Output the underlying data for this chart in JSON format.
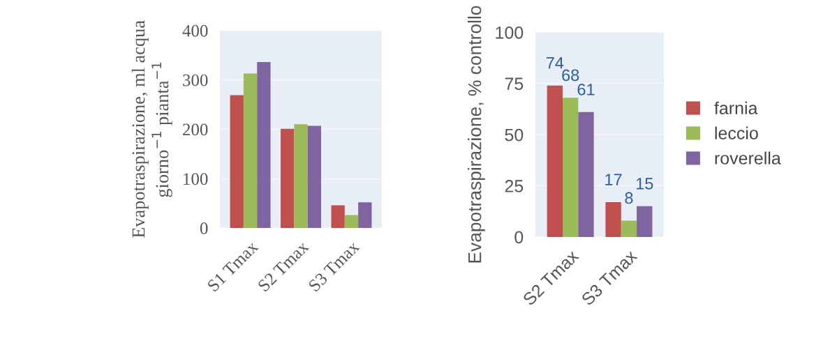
{
  "chart_data": [
    {
      "type": "bar",
      "ylabel": "Evapotraspirazione, ml acqua giorno$^{−1}$ pianta$^{−1}$",
      "categories": [
        "S1 Tmax",
        "S2 Tmax",
        "S3 Tmax"
      ],
      "series": [
        {
          "color": "#c0504d",
          "values": [
            269,
            201,
            46
          ]
        },
        {
          "color": "#9bbb59",
          "values": [
            313,
            210,
            26
          ]
        },
        {
          "color": "#8064a2",
          "values": [
            336,
            207,
            52
          ]
        }
      ],
      "ylim": [
        0,
        400
      ],
      "yticks": [
        0,
        100,
        200,
        300,
        400
      ],
      "grid": "y"
    },
    {
      "type": "bar",
      "ylabel": "Evapotraspirazione, % controllo",
      "categories": [
        "S2 Tmax",
        "S3 Tmax"
      ],
      "series": [
        {
          "name": "farnia",
          "color": "#c0504d",
          "values": [
            74,
            17
          ]
        },
        {
          "name": "leccio",
          "color": "#9bbb59",
          "values": [
            68,
            8
          ]
        },
        {
          "name": "roverella",
          "color": "#8064a2",
          "values": [
            61,
            15
          ]
        }
      ],
      "ylim": [
        0,
        100
      ],
      "yticks": [
        0,
        25,
        50,
        75,
        100
      ],
      "grid": "y",
      "data_labels": true,
      "legend": "right"
    }
  ]
}
